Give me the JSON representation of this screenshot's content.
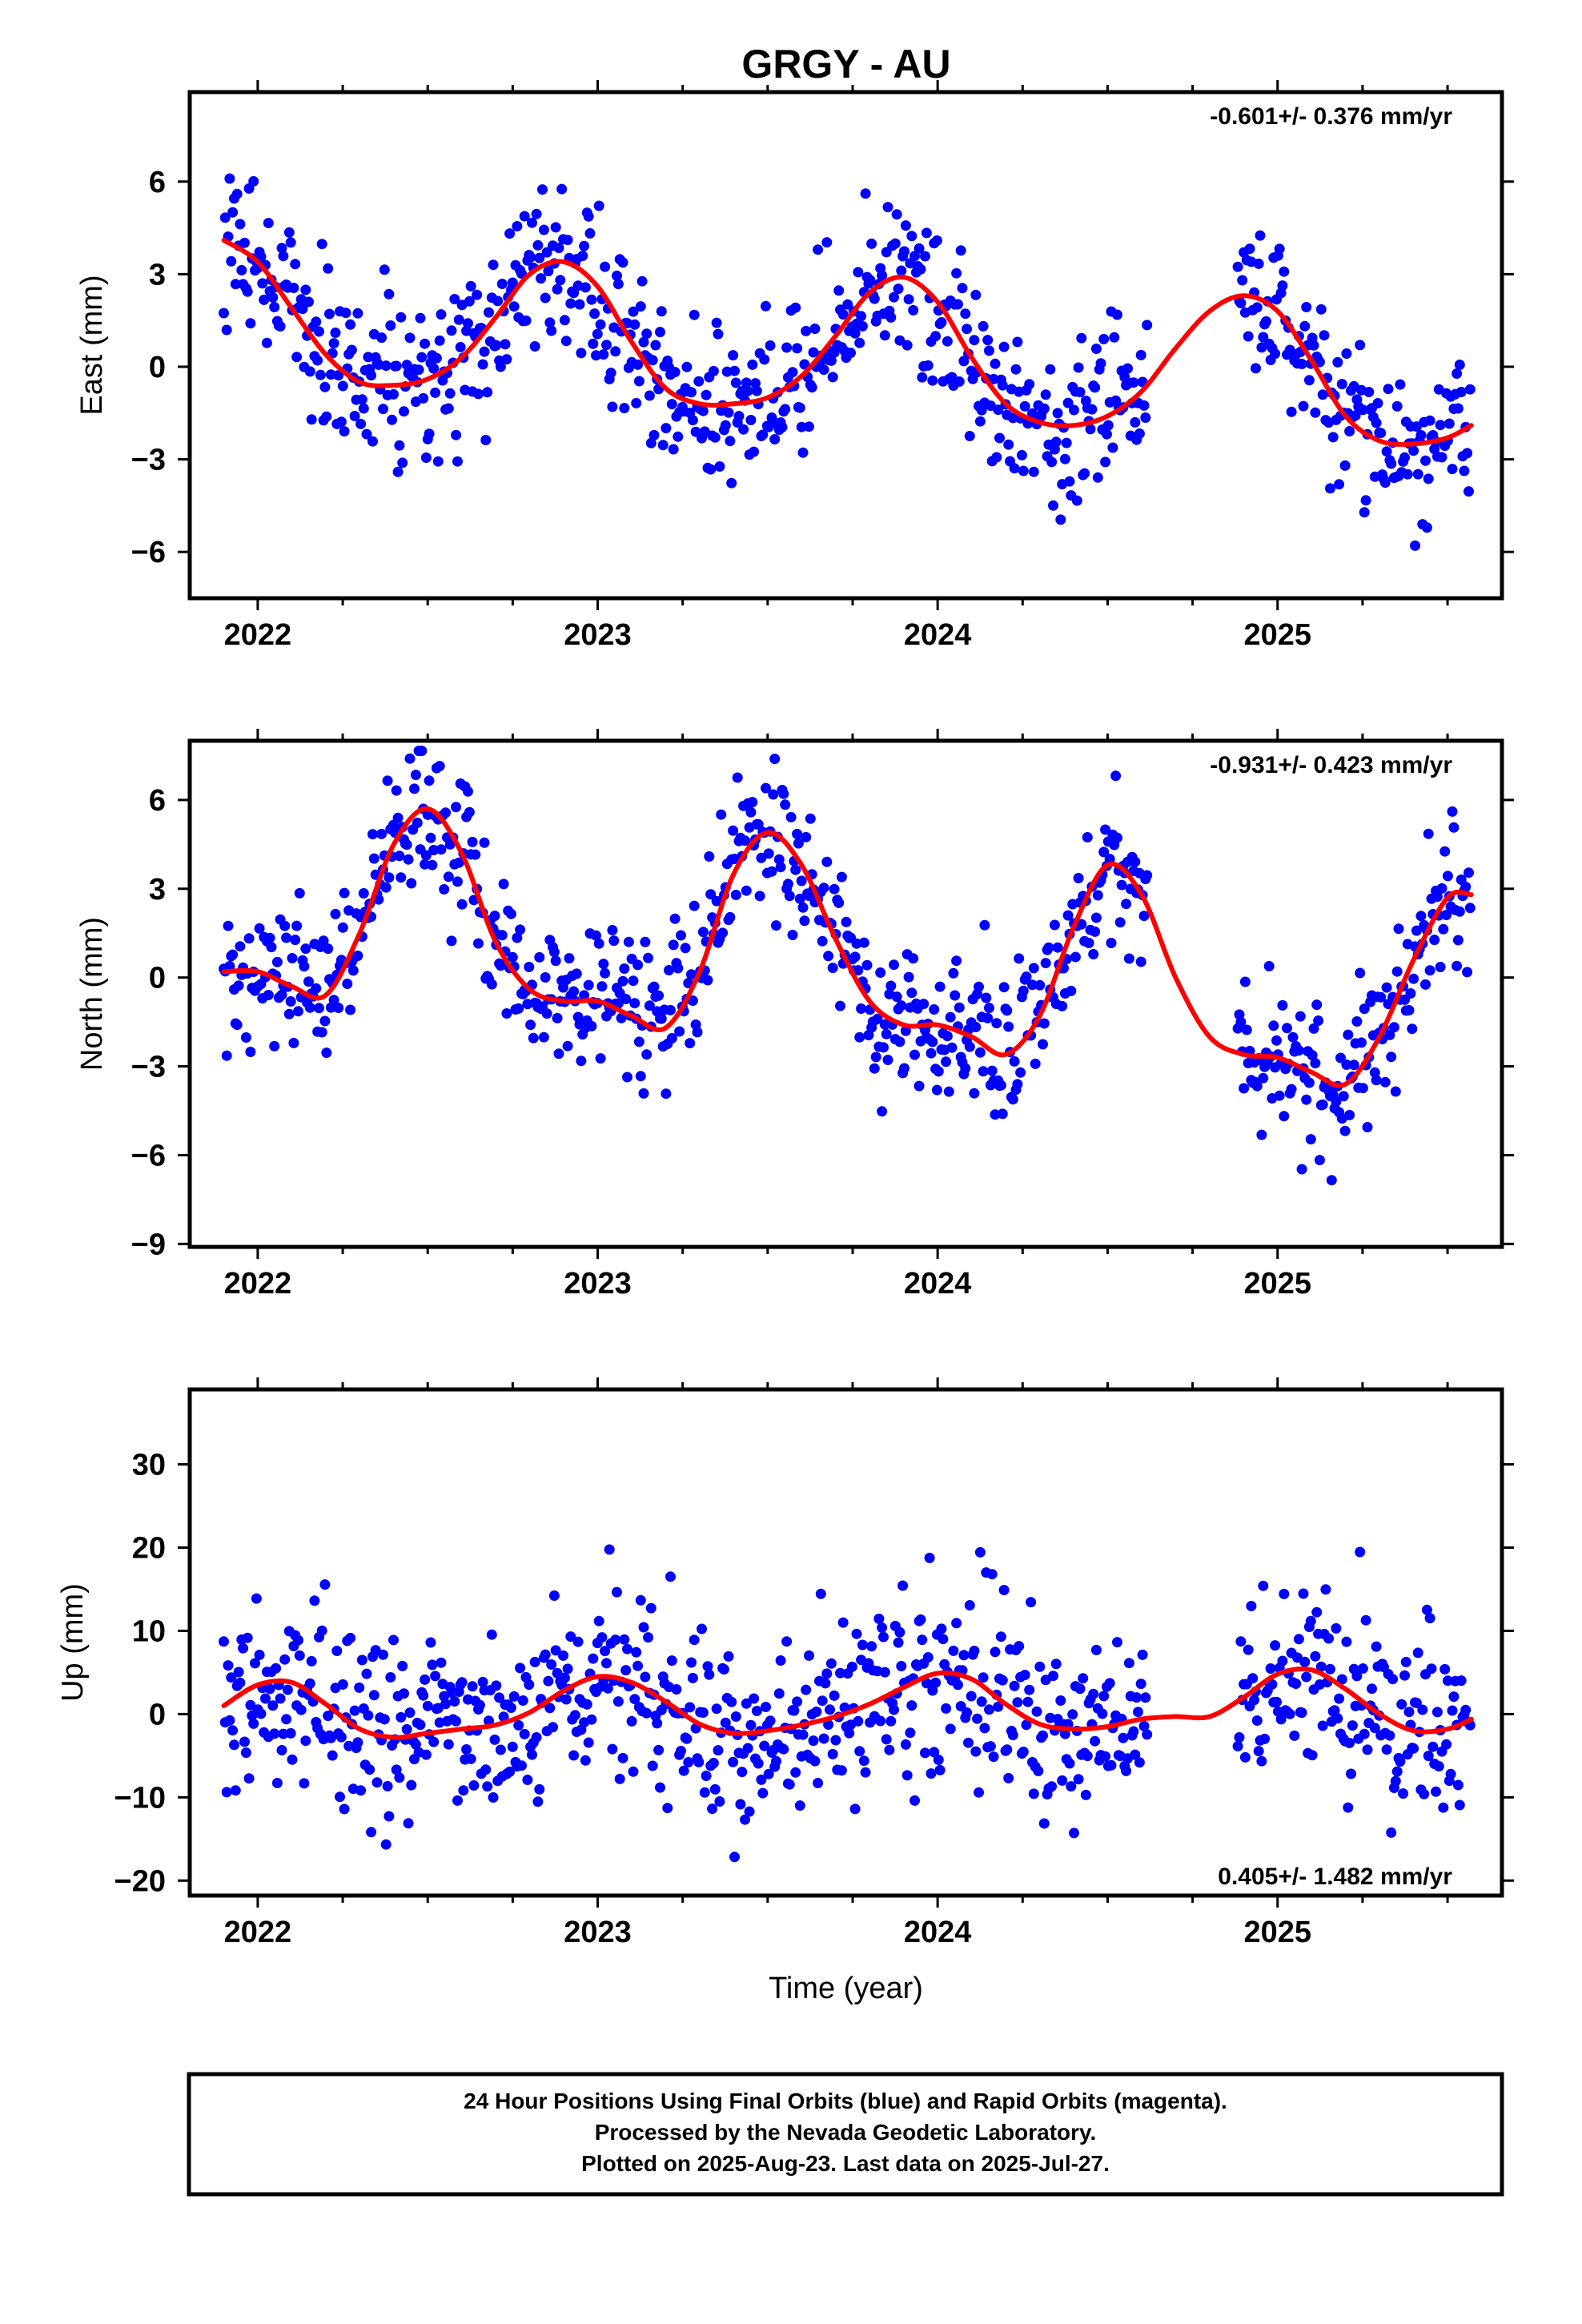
{
  "title": "GRGY - AU",
  "colors": {
    "final_points": "#0000ff",
    "fit_curve": "#ff0000",
    "axes": "#000000"
  },
  "chart_data": [
    {
      "type": "scatter",
      "panel": "east",
      "ylabel": "East (mm)",
      "xlabel": "",
      "xlim": [
        2021.8,
        2025.66
      ],
      "ylim": [
        -7.5,
        8.9
      ],
      "x_ticks": [
        2022,
        2023,
        2024,
        2025
      ],
      "x_tick_labels": [
        "2022",
        "2023",
        "2024",
        "2025"
      ],
      "y_ticks": [
        -6,
        -3,
        0,
        3,
        6
      ],
      "y_tick_labels": [
        "−6",
        "−3",
        "0",
        "3",
        "6"
      ],
      "rate_label": "-0.601+/- 0.376 mm/yr",
      "rate_position": "top-right",
      "points_range": [
        2021.9,
        2025.57
      ],
      "data_gap": [
        2024.62,
        2024.88
      ],
      "scatter_sd": 1.25,
      "fit_curve": {
        "x": [
          2021.9,
          2022.0,
          2022.1,
          2022.2,
          2022.3,
          2022.4,
          2022.5,
          2022.6,
          2022.7,
          2022.8,
          2022.9,
          2023.0,
          2023.1,
          2023.2,
          2023.3,
          2023.4,
          2023.5,
          2023.6,
          2023.7,
          2023.8,
          2023.9,
          2024.0,
          2024.1,
          2024.2,
          2024.3,
          2024.4,
          2024.5,
          2024.6,
          2024.7,
          2024.8,
          2024.9,
          2025.0,
          2025.1,
          2025.2,
          2025.3,
          2025.4,
          2025.5,
          2025.57
        ],
        "y": [
          4.1,
          3.4,
          1.9,
          0.4,
          -0.5,
          -0.6,
          -0.4,
          0.3,
          1.6,
          3.0,
          3.4,
          2.6,
          0.8,
          -0.7,
          -1.2,
          -1.2,
          -1.0,
          -0.3,
          1.0,
          2.4,
          2.9,
          2.1,
          0.3,
          -1.2,
          -1.8,
          -1.9,
          -1.6,
          -0.8,
          0.6,
          1.8,
          2.3,
          1.8,
          0.2,
          -1.6,
          -2.4,
          -2.5,
          -2.3,
          -1.9
        ]
      }
    },
    {
      "type": "scatter",
      "panel": "north",
      "ylabel": "North (mm)",
      "xlabel": "",
      "xlim": [
        2021.8,
        2025.66
      ],
      "ylim": [
        -9.1,
        8.0
      ],
      "x_ticks": [
        2022,
        2023,
        2024,
        2025
      ],
      "x_tick_labels": [
        "2022",
        "2023",
        "2024",
        "2025"
      ],
      "y_ticks": [
        -9,
        -6,
        -3,
        0,
        3,
        6
      ],
      "y_tick_labels": [
        "−9",
        "−6",
        "−3",
        "0",
        "3",
        "6"
      ],
      "rate_label": "-0.931+/- 0.423 mm/yr",
      "rate_position": "top-right",
      "points_range": [
        2021.9,
        2025.57
      ],
      "data_gap": [
        2024.62,
        2024.88
      ],
      "scatter_sd": 1.25,
      "fit_curve": {
        "x": [
          2021.9,
          2022.0,
          2022.1,
          2022.2,
          2022.3,
          2022.4,
          2022.5,
          2022.6,
          2022.7,
          2022.8,
          2022.9,
          2023.0,
          2023.1,
          2023.2,
          2023.3,
          2023.4,
          2023.5,
          2023.6,
          2023.7,
          2023.8,
          2023.9,
          2024.0,
          2024.1,
          2024.2,
          2024.3,
          2024.4,
          2024.5,
          2024.6,
          2024.7,
          2024.8,
          2024.9,
          2025.0,
          2025.1,
          2025.2,
          2025.3,
          2025.4,
          2025.5,
          2025.57
        ],
        "y": [
          0.2,
          0.2,
          -0.3,
          -0.6,
          1.5,
          4.5,
          5.7,
          4.2,
          1.2,
          -0.4,
          -0.8,
          -0.8,
          -1.3,
          -1.7,
          0.2,
          3.5,
          4.9,
          3.8,
          1.3,
          -0.8,
          -1.6,
          -1.6,
          -2.0,
          -2.6,
          -1.3,
          1.7,
          3.8,
          2.8,
          0.0,
          -2.0,
          -2.6,
          -2.7,
          -3.2,
          -3.6,
          -2.0,
          0.6,
          2.7,
          2.8
        ]
      }
    },
    {
      "type": "scatter",
      "panel": "up",
      "ylabel": "Up (mm)",
      "xlabel": "Time (year)",
      "xlim": [
        2021.8,
        2025.66
      ],
      "ylim": [
        -21.8,
        39.0
      ],
      "x_ticks": [
        2022,
        2023,
        2024,
        2025
      ],
      "x_tick_labels": [
        "2022",
        "2023",
        "2024",
        "2025"
      ],
      "y_ticks": [
        -20,
        -10,
        0,
        10,
        20,
        30
      ],
      "y_tick_labels": [
        "−20",
        "−10",
        "0",
        "10",
        "20",
        "30"
      ],
      "rate_label": "0.405+/- 1.482 mm/yr",
      "rate_position": "bottom-right",
      "points_range": [
        2021.9,
        2025.57
      ],
      "data_gap": [
        2024.62,
        2024.88
      ],
      "scatter_sd": 5.5,
      "fit_curve": {
        "x": [
          2021.9,
          2022.0,
          2022.1,
          2022.2,
          2022.3,
          2022.4,
          2022.5,
          2022.6,
          2022.7,
          2022.8,
          2022.9,
          2023.0,
          2023.1,
          2023.2,
          2023.3,
          2023.4,
          2023.5,
          2023.6,
          2023.7,
          2023.8,
          2023.9,
          2024.0,
          2024.1,
          2024.2,
          2024.3,
          2024.4,
          2024.5,
          2024.6,
          2024.7,
          2024.8,
          2024.9,
          2025.0,
          2025.1,
          2025.2,
          2025.3,
          2025.4,
          2025.5,
          2025.57
        ],
        "y": [
          1.0,
          3.5,
          3.8,
          1.2,
          -1.8,
          -2.8,
          -2.3,
          -1.8,
          -1.3,
          0.2,
          2.8,
          4.5,
          3.8,
          1.5,
          -1.2,
          -2.3,
          -2.0,
          -1.3,
          -0.3,
          1.2,
          3.2,
          4.9,
          4.2,
          1.2,
          -1.2,
          -1.8,
          -1.5,
          -0.6,
          -0.3,
          -0.3,
          2.0,
          4.8,
          5.3,
          3.0,
          0.0,
          -2.0,
          -1.8,
          -0.6
        ]
      }
    }
  ],
  "footer": {
    "line1": "24 Hour Positions Using Final Orbits (blue) and Rapid Orbits (magenta).",
    "line2": "Processed by the Nevada Geodetic Laboratory.",
    "line3": "Plotted on 2025-Aug-23. Last data on 2025-Jul-27."
  }
}
